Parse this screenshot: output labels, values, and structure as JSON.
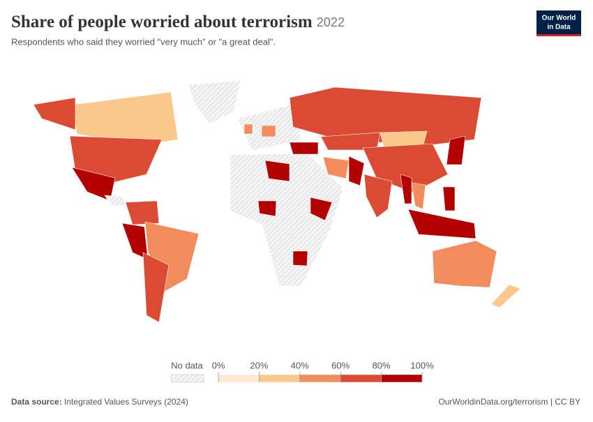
{
  "header": {
    "title": "Share of people worried about terrorism",
    "year": "2022",
    "subtitle": "Respondents who said they worried \"very much\" or \"a great deal\".",
    "logo": [
      "Our World",
      "in Data"
    ]
  },
  "chart_data": {
    "type": "choropleth",
    "legend": {
      "no_data": "No data",
      "ticks": [
        {
          "value": 0,
          "label": "0%"
        },
        {
          "value": 20,
          "label": "20%"
        },
        {
          "value": 40,
          "label": "40%"
        },
        {
          "value": 60,
          "label": "60%"
        },
        {
          "value": 80,
          "label": "80%"
        },
        {
          "value": 100,
          "label": "100%"
        }
      ],
      "colors": [
        "#fde8d0",
        "#f9c88a",
        "#f28c5c",
        "#db4a33",
        "#b30000"
      ]
    }
  },
  "footer": {
    "source_label": "Data source:",
    "source": "Integrated Values Surveys (2024)",
    "url": "OurWorldinData.org/terrorism | CC BY"
  }
}
